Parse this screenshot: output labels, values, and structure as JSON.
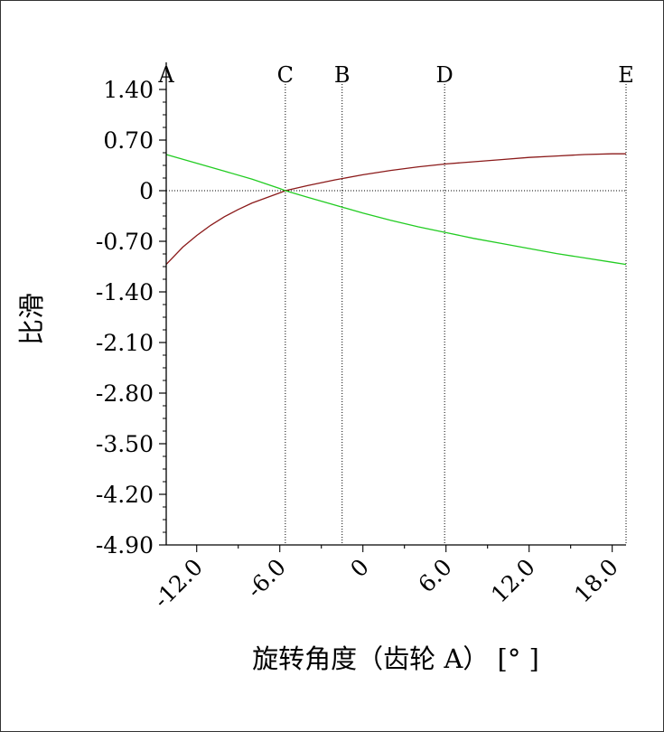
{
  "chart_data": {
    "type": "line",
    "xlabel": "旋转角度（齿轮 A） [° ]",
    "ylabel": "比滑",
    "xlim": [
      -14.2,
      19.0
    ],
    "ylim": [
      -4.9,
      1.4
    ],
    "x_ticks": [
      "-12.0",
      "-6.0",
      "0",
      "6.0",
      "12.0",
      "18.0"
    ],
    "x_tick_values": [
      -12,
      -6,
      0,
      6,
      12,
      18
    ],
    "y_ticks": [
      "1.40",
      "0.70",
      "0",
      "-0.70",
      "-1.40",
      "-2.10",
      "-2.80",
      "-3.50",
      "-4.20",
      "-4.90"
    ],
    "y_tick_values": [
      1.4,
      0.7,
      0,
      -0.7,
      -1.4,
      -2.1,
      -2.8,
      -3.5,
      -4.2,
      -4.9
    ],
    "markers": [
      {
        "label": "A",
        "x": -14.2
      },
      {
        "label": "C",
        "x": -5.6
      },
      {
        "label": "B",
        "x": -1.5
      },
      {
        "label": "D",
        "x": 5.9
      },
      {
        "label": "E",
        "x": 19.0
      }
    ],
    "series": [
      {
        "color": "#8b1a1a",
        "x": [
          -14.2,
          -13.0,
          -12.0,
          -11.0,
          -10.0,
          -9.0,
          -8.0,
          -7.0,
          -6.0,
          -5.6,
          -4.0,
          -2.0,
          0.0,
          2.0,
          4.0,
          6.0,
          8.0,
          10.0,
          12.0,
          14.0,
          16.0,
          18.0,
          19.0
        ],
        "y": [
          -1.02,
          -0.78,
          -0.62,
          -0.48,
          -0.36,
          -0.26,
          -0.17,
          -0.1,
          -0.03,
          0.0,
          0.07,
          0.15,
          0.22,
          0.28,
          0.33,
          0.37,
          0.4,
          0.43,
          0.46,
          0.48,
          0.5,
          0.51,
          0.51
        ]
      },
      {
        "color": "#22cc22",
        "x": [
          -14.2,
          -12.0,
          -10.0,
          -8.0,
          -6.0,
          -5.6,
          -4.0,
          -2.0,
          0.0,
          2.0,
          4.0,
          6.0,
          8.0,
          10.0,
          12.0,
          14.0,
          16.0,
          18.0,
          19.0
        ],
        "y": [
          0.5,
          0.38,
          0.27,
          0.16,
          0.03,
          0.0,
          -0.09,
          -0.2,
          -0.31,
          -0.41,
          -0.5,
          -0.58,
          -0.66,
          -0.73,
          -0.8,
          -0.87,
          -0.93,
          -0.99,
          -1.02
        ]
      }
    ]
  }
}
